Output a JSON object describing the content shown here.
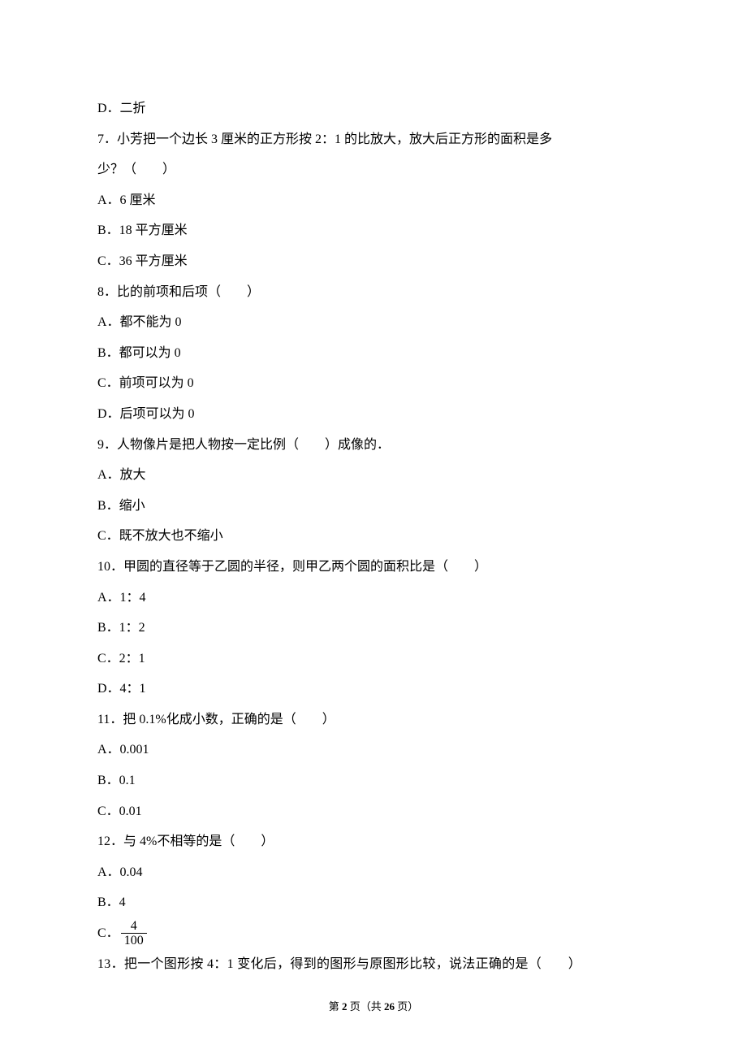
{
  "questions": {
    "q6_optD": "D．二折",
    "q7_stem": "7．小芳把一个边长 3 厘米的正方形按 2：1 的比放大，放大后正方形的面积是多",
    "q7_stem2": "少？（　　）",
    "q7_optA": "A．6 厘米",
    "q7_optB": "B．18 平方厘米",
    "q7_optC": "C．36 平方厘米",
    "q8_stem": "8．比的前项和后项（　　）",
    "q8_optA": "A．都不能为 0",
    "q8_optB": "B．都可以为 0",
    "q8_optC": "C．前项可以为 0",
    "q8_optD": "D．后项可以为 0",
    "q9_stem": "9．人物像片是把人物按一定比例（　　）成像的．",
    "q9_optA": "A．放大",
    "q9_optB": "B．缩小",
    "q9_optC": "C．既不放大也不缩小",
    "q10_stem": "10．甲圆的直径等于乙圆的半径，则甲乙两个圆的面积比是（　　）",
    "q10_optA": "A．1：4",
    "q10_optB": "B．1：2",
    "q10_optC": "C．2：1",
    "q10_optD": "D．4：1",
    "q11_stem": "11．把 0.1%化成小数，正确的是（　　）",
    "q11_optA": "A．0.001",
    "q11_optB": "B．0.1",
    "q11_optC": "C．0.01",
    "q12_stem": "12．与 4%不相等的是（　　）",
    "q12_optA": "A．0.04",
    "q12_optB": "B．4",
    "q12_optC_prefix": "C．",
    "q12_optC_num": "4",
    "q12_optC_den": "100",
    "q13_stem": "13．把一个图形按 4：1 变化后，得到的图形与原图形比较，说法正确的是（　　）"
  },
  "footer": {
    "prefix": "第 ",
    "page_current": "2",
    "middle": " 页（共 ",
    "page_total": "26",
    "suffix": " 页）"
  }
}
